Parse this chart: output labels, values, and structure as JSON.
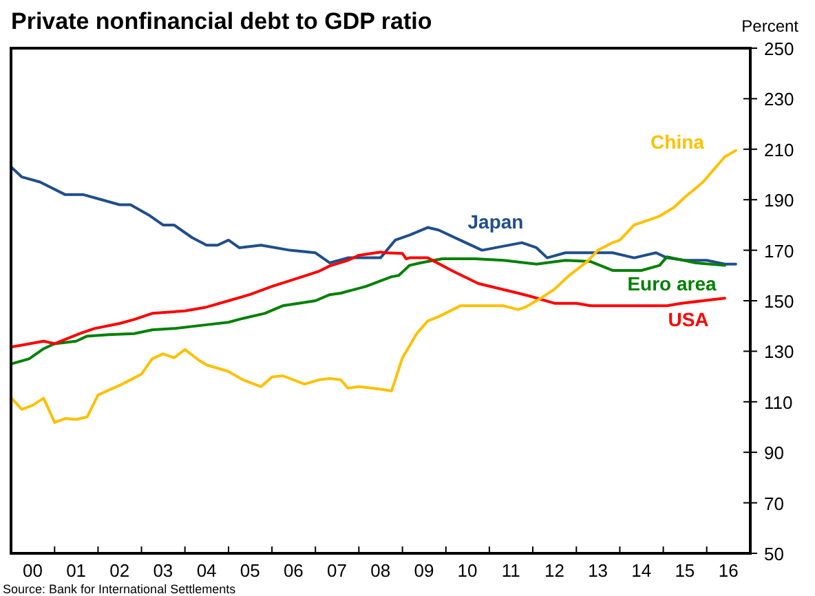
{
  "chart_data": {
    "type": "line",
    "title": "Private nonfinancial debt to GDP ratio",
    "ylabel": "Percent",
    "annotations": [
      "Source: Bank for International Settlements"
    ],
    "xlim": [
      "2000-01",
      "2017-01"
    ],
    "xticks": [
      {
        "value": "2000-01",
        "label": null
      },
      {
        "value": "2000-07",
        "label": "00"
      },
      {
        "value": "2001-01",
        "label": null
      },
      {
        "value": "2001-07",
        "label": "01"
      },
      {
        "value": "2002-01",
        "label": null
      },
      {
        "value": "2002-07",
        "label": "02"
      },
      {
        "value": "2003-01",
        "label": null
      },
      {
        "value": "2003-07",
        "label": "03"
      },
      {
        "value": "2004-01",
        "label": null
      },
      {
        "value": "2004-07",
        "label": "04"
      },
      {
        "value": "2005-01",
        "label": null
      },
      {
        "value": "2005-07",
        "label": "05"
      },
      {
        "value": "2006-01",
        "label": null
      },
      {
        "value": "2006-07",
        "label": "06"
      },
      {
        "value": "2007-01",
        "label": null
      },
      {
        "value": "2007-07",
        "label": "07"
      },
      {
        "value": "2008-01",
        "label": null
      },
      {
        "value": "2008-07",
        "label": "08"
      },
      {
        "value": "2009-01",
        "label": null
      },
      {
        "value": "2009-07",
        "label": "09"
      },
      {
        "value": "2010-01",
        "label": null
      },
      {
        "value": "2010-07",
        "label": "10"
      },
      {
        "value": "2011-01",
        "label": null
      },
      {
        "value": "2011-07",
        "label": "11"
      },
      {
        "value": "2012-01",
        "label": null
      },
      {
        "value": "2012-07",
        "label": "12"
      },
      {
        "value": "2013-01",
        "label": null
      },
      {
        "value": "2013-07",
        "label": "13"
      },
      {
        "value": "2014-01",
        "label": null
      },
      {
        "value": "2014-07",
        "label": "14"
      },
      {
        "value": "2015-01",
        "label": null
      },
      {
        "value": "2015-07",
        "label": "15"
      },
      {
        "value": "2016-01",
        "label": null
      },
      {
        "value": "2016-07",
        "label": "16"
      },
      {
        "value": "2017-01",
        "label": null
      }
    ],
    "ylim": [
      50,
      250
    ],
    "yticks": [
      50,
      70,
      90,
      110,
      130,
      150,
      170,
      190,
      210,
      230,
      250
    ],
    "grid": false,
    "legend": false,
    "line_style": "solid",
    "marker": "none",
    "series": [
      {
        "name": "Japan",
        "color": "#1f4e8c",
        "x": [
          "2000-01",
          "2000-04",
          "2000-09",
          "2001-04",
          "2001-09",
          "2002-02",
          "2002-07",
          "2002-10",
          "2003-03",
          "2003-07",
          "2003-10",
          "2004-03",
          "2004-07",
          "2004-10",
          "2005-01",
          "2005-04",
          "2005-10",
          "2006-06",
          "2007-01",
          "2007-05",
          "2007-10",
          "2008-03",
          "2008-07",
          "2008-11",
          "2009-03",
          "2009-08",
          "2009-11",
          "2010-05",
          "2010-11",
          "2011-10",
          "2012-02",
          "2012-05",
          "2012-10",
          "2013-11",
          "2014-05",
          "2014-11",
          "2015-02",
          "2015-07",
          "2016-01",
          "2016-06",
          "2016-09"
        ],
        "values": [
          203,
          199,
          197,
          192,
          192,
          190,
          188,
          188,
          184,
          180,
          180,
          175,
          172,
          172,
          174,
          171,
          172,
          170,
          169,
          165,
          167,
          167,
          167,
          174,
          176,
          179,
          178,
          174,
          170,
          173,
          171,
          167,
          169,
          169,
          167,
          169,
          167,
          166,
          166,
          164.5,
          164.5
        ]
      },
      {
        "name": "Euro area",
        "color": "#008000",
        "x": [
          "2000-01",
          "2000-06",
          "2000-10",
          "2001-01",
          "2001-07",
          "2001-10",
          "2002-04",
          "2002-11",
          "2003-04",
          "2003-10",
          "2004-07",
          "2005-01",
          "2005-05",
          "2005-11",
          "2006-04",
          "2007-01",
          "2007-05",
          "2007-08",
          "2008-03",
          "2008-10",
          "2008-12",
          "2009-03",
          "2009-06",
          "2009-12",
          "2010-09",
          "2011-05",
          "2012-02",
          "2012-10",
          "2013-05",
          "2013-11",
          "2014-07",
          "2014-12",
          "2015-02",
          "2015-10",
          "2016-06"
        ],
        "values": [
          125,
          127,
          131,
          133,
          134,
          136,
          136.6,
          137,
          138.5,
          139,
          140.5,
          141.5,
          143,
          145,
          148,
          150,
          152.4,
          153,
          155.7,
          159.5,
          160,
          164,
          165,
          166.6,
          166.6,
          166,
          164.5,
          166,
          165.5,
          162,
          162,
          164,
          167.4,
          165,
          164
        ]
      },
      {
        "name": "USA",
        "color": "#ff0000",
        "x": [
          "2000-01",
          "2000-10",
          "2001-01",
          "2001-08",
          "2001-12",
          "2002-07",
          "2002-11",
          "2003-04",
          "2004-01",
          "2004-07",
          "2005-01",
          "2005-07",
          "2006-01",
          "2006-07",
          "2007-02",
          "2007-05",
          "2007-10",
          "2008-01",
          "2008-07",
          "2008-08",
          "2009-01",
          "2009-02",
          "2009-03",
          "2009-08",
          "2010-03",
          "2010-10",
          "2011-09",
          "2011-12",
          "2012-07",
          "2013-01",
          "2013-05",
          "2014-01",
          "2015-02",
          "2015-06",
          "2015-12",
          "2016-06"
        ],
        "values": [
          131.7,
          134,
          133,
          137,
          139,
          141,
          142.6,
          145,
          146,
          147.5,
          150,
          152.5,
          155.7,
          158.4,
          161.7,
          163.8,
          166,
          168,
          169.3,
          169,
          168.7,
          166.6,
          167,
          167,
          161.7,
          156.8,
          153,
          151.9,
          149,
          149,
          148,
          148,
          148,
          149,
          150,
          151
        ]
      },
      {
        "name": "China",
        "color": "#ffc000",
        "x": [
          "2000-01",
          "2000-04",
          "2000-07",
          "2000-10",
          "2001-01",
          "2001-04",
          "2001-07",
          "2001-10",
          "2002-01",
          "2002-07",
          "2002-10",
          "2003-01",
          "2003-04",
          "2003-07",
          "2003-10",
          "2004-01",
          "2004-05",
          "2004-07",
          "2005-01",
          "2005-05",
          "2005-10",
          "2006-01",
          "2006-04",
          "2006-10",
          "2007-02",
          "2007-05",
          "2007-08",
          "2007-10",
          "2008-01",
          "2008-07",
          "2008-10",
          "2009-01",
          "2009-05",
          "2009-08",
          "2009-11",
          "2010-05",
          "2010-09",
          "2011-02",
          "2011-05",
          "2011-09",
          "2011-11",
          "2012-03",
          "2012-07",
          "2012-11",
          "2013-04",
          "2013-07",
          "2013-11",
          "2014-01",
          "2014-05",
          "2014-09",
          "2014-12",
          "2015-04",
          "2015-07",
          "2015-12",
          "2016-03",
          "2016-06",
          "2016-09"
        ],
        "values": [
          111.6,
          107,
          108.6,
          111.4,
          101.8,
          103.4,
          103,
          104,
          112.7,
          116.5,
          118.7,
          121,
          127,
          129,
          127.4,
          130.7,
          126.3,
          124.6,
          122,
          118.7,
          116,
          119.8,
          120.3,
          117,
          118.7,
          119.2,
          118.7,
          115.4,
          116,
          115,
          114.3,
          127.4,
          137,
          142,
          143.7,
          148,
          148,
          148,
          148,
          146.5,
          147.5,
          150.8,
          154.6,
          160,
          165.5,
          170,
          173,
          174,
          180,
          182,
          183.5,
          187,
          191,
          197,
          202,
          207,
          209.5
        ]
      }
    ]
  }
}
